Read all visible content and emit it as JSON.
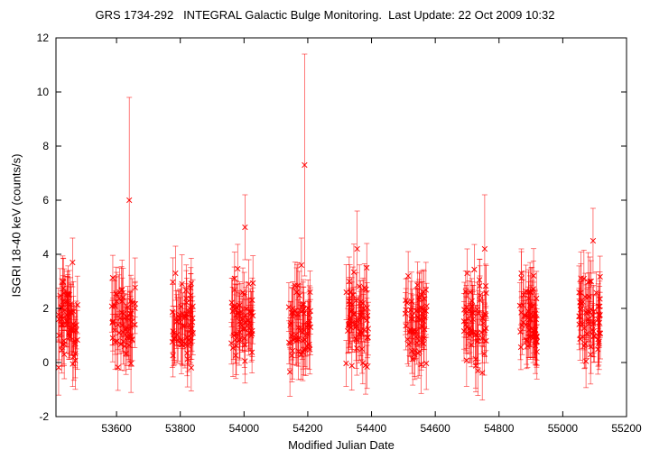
{
  "chart_data": {
    "type": "scatter",
    "title": "GRS 1734-292   INTEGRAL Galactic Bulge Monitoring.  Last Update: 22 Oct 2009 10:32",
    "xlabel": "Modified Julian Date",
    "ylabel": "ISGRI 18-40 keV (counts/s)",
    "xlim": [
      53410,
      55200
    ],
    "ylim": [
      -2,
      12
    ],
    "xticks": [
      53600,
      53800,
      54000,
      54200,
      54400,
      54600,
      54800,
      55000,
      55200
    ],
    "yticks": [
      -2,
      0,
      2,
      4,
      6,
      8,
      10,
      12
    ],
    "grid": false,
    "legend": "none",
    "marker": "x",
    "color": "#ff0000",
    "error_bars": "vertical",
    "observation_windows": [
      {
        "start": 53412,
        "end": 53478
      },
      {
        "start": 53585,
        "end": 53660
      },
      {
        "start": 53775,
        "end": 53840
      },
      {
        "start": 53960,
        "end": 54030
      },
      {
        "start": 54140,
        "end": 54210
      },
      {
        "start": 54320,
        "end": 54390
      },
      {
        "start": 54505,
        "end": 54575
      },
      {
        "start": 54690,
        "end": 54760
      },
      {
        "start": 54865,
        "end": 54920
      },
      {
        "start": 55050,
        "end": 55120
      }
    ],
    "notable_points": [
      {
        "x": 53640,
        "y": 6.0,
        "err": 3.8
      },
      {
        "x": 54190,
        "y": 7.3,
        "err": 4.1
      },
      {
        "x": 54003,
        "y": 5.0,
        "err": 1.2
      },
      {
        "x": 54755,
        "y": 4.2,
        "err": 2.0
      },
      {
        "x": 55095,
        "y": 4.5,
        "err": 1.2
      },
      {
        "x": 54355,
        "y": 4.2,
        "err": 1.4
      },
      {
        "x": 53462,
        "y": 3.7,
        "err": 0.9
      }
    ],
    "typical_points": [
      {
        "x": 53420,
        "y": 1.0,
        "err": 0.9
      },
      {
        "x": 53428,
        "y": 2.0,
        "err": 0.9
      },
      {
        "x": 53436,
        "y": 0.3,
        "err": 0.9
      },
      {
        "x": 53444,
        "y": 1.5,
        "err": 0.9
      },
      {
        "x": 53452,
        "y": 2.5,
        "err": 0.9
      },
      {
        "x": 53470,
        "y": 0.8,
        "err": 0.9
      },
      {
        "x": 53595,
        "y": 1.2,
        "err": 0.9
      },
      {
        "x": 53610,
        "y": 2.6,
        "err": 0.9
      },
      {
        "x": 53625,
        "y": 0.6,
        "err": 0.9
      },
      {
        "x": 53650,
        "y": 2.2,
        "err": 0.9
      },
      {
        "x": 53785,
        "y": 3.3,
        "err": 1.0
      },
      {
        "x": 53800,
        "y": 1.5,
        "err": 0.9
      },
      {
        "x": 53815,
        "y": 0.7,
        "err": 0.9
      },
      {
        "x": 53830,
        "y": 2.0,
        "err": 0.9
      },
      {
        "x": 53970,
        "y": 2.0,
        "err": 0.9
      },
      {
        "x": 53985,
        "y": 0.8,
        "err": 0.9
      },
      {
        "x": 54015,
        "y": 2.9,
        "err": 0.9
      },
      {
        "x": 54150,
        "y": 1.0,
        "err": 0.9
      },
      {
        "x": 54165,
        "y": 2.6,
        "err": 0.9
      },
      {
        "x": 54180,
        "y": 3.6,
        "err": 1.0
      },
      {
        "x": 54200,
        "y": 1.4,
        "err": 0.9
      },
      {
        "x": 54330,
        "y": 3.0,
        "err": 0.9
      },
      {
        "x": 54345,
        "y": 1.8,
        "err": 0.9
      },
      {
        "x": 54370,
        "y": 0.5,
        "err": 0.9
      },
      {
        "x": 54385,
        "y": 3.5,
        "err": 0.9
      },
      {
        "x": 54515,
        "y": 3.2,
        "err": 0.9
      },
      {
        "x": 54530,
        "y": 1.6,
        "err": 0.9
      },
      {
        "x": 54550,
        "y": 2.4,
        "err": 0.9
      },
      {
        "x": 54565,
        "y": 0.9,
        "err": 0.9
      },
      {
        "x": 54700,
        "y": 3.3,
        "err": 0.9
      },
      {
        "x": 54720,
        "y": 1.1,
        "err": 0.9
      },
      {
        "x": 54740,
        "y": 2.3,
        "err": 0.9
      },
      {
        "x": 54870,
        "y": 3.3,
        "err": 0.9
      },
      {
        "x": 54885,
        "y": 1.4,
        "err": 0.9
      },
      {
        "x": 54900,
        "y": 2.6,
        "err": 0.9
      },
      {
        "x": 54915,
        "y": 0.8,
        "err": 0.9
      },
      {
        "x": 55055,
        "y": 2.1,
        "err": 0.9
      },
      {
        "x": 55070,
        "y": 0.7,
        "err": 0.9
      },
      {
        "x": 55085,
        "y": 3.0,
        "err": 0.9
      },
      {
        "x": 55110,
        "y": 1.6,
        "err": 0.9
      }
    ]
  }
}
